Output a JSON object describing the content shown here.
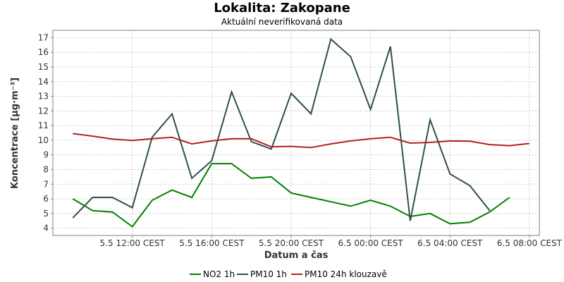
{
  "chart_data": {
    "type": "line",
    "title": "Lokalita: Zakopane",
    "subtitle": "Aktuální neverifikovaná data",
    "xlabel": "Datum a čas",
    "ylabel": "Koncentrace [µg·m⁻³]",
    "ylim": [
      3.5,
      17.5
    ],
    "yticks": [
      4,
      5,
      6,
      7,
      8,
      9,
      10,
      11,
      12,
      13,
      14,
      15,
      16,
      17
    ],
    "xlim": [
      8.0,
      32.5
    ],
    "xticks": [
      {
        "value": 12,
        "label": "5.5 12:00 CEST"
      },
      {
        "value": 16,
        "label": "5.5 16:00 CEST"
      },
      {
        "value": 20,
        "label": "5.5 20:00 CEST"
      },
      {
        "value": 24,
        "label": "6.5 00:00 CEST"
      },
      {
        "value": 28,
        "label": "6.5 04:00 CEST"
      },
      {
        "value": 32,
        "label": "6.5 08:00 CEST"
      }
    ],
    "grid": true,
    "legend_position": "bottom",
    "x_unit": "hours since 5.5 00:00 CEST",
    "series": [
      {
        "name": "NO2 1h",
        "color": "#008000",
        "x": [
          9,
          10,
          11,
          12,
          13,
          14,
          15,
          16,
          17,
          18,
          19,
          20,
          21,
          22,
          23,
          24,
          25,
          26,
          27,
          28,
          29,
          30,
          31
        ],
        "values": [
          6.0,
          5.2,
          5.1,
          4.1,
          5.9,
          6.6,
          6.1,
          8.4,
          8.4,
          7.4,
          7.5,
          6.4,
          6.1,
          5.8,
          5.5,
          5.9,
          5.5,
          4.8,
          5.0,
          4.3,
          4.4,
          5.1,
          6.1
        ]
      },
      {
        "name": "PM10 1h",
        "color": "#2f4f4f",
        "x": [
          9,
          10,
          11,
          12,
          13,
          14,
          15,
          16,
          17,
          18,
          19,
          20,
          21,
          22,
          23,
          24,
          25,
          26,
          27,
          28,
          29,
          30
        ],
        "values": [
          4.7,
          6.1,
          6.1,
          5.4,
          10.2,
          11.8,
          7.4,
          8.6,
          13.3,
          9.9,
          9.4,
          13.2,
          11.8,
          16.9,
          15.7,
          12.1,
          16.4,
          4.5,
          11.4,
          7.7,
          6.9,
          5.2
        ]
      },
      {
        "name": "PM10 24h klouzavě",
        "color": "#b22222",
        "x": [
          9,
          10,
          11,
          12,
          13,
          14,
          15,
          16,
          17,
          18,
          19,
          20,
          21,
          22,
          23,
          24,
          25,
          26,
          27,
          28,
          29,
          30,
          31,
          32
        ],
        "values": [
          10.45,
          10.28,
          10.08,
          9.98,
          10.1,
          10.2,
          9.75,
          9.95,
          10.1,
          10.1,
          9.55,
          9.58,
          9.5,
          9.75,
          9.95,
          10.1,
          10.2,
          9.8,
          9.85,
          9.95,
          9.93,
          9.7,
          9.63,
          9.78
        ]
      }
    ]
  }
}
